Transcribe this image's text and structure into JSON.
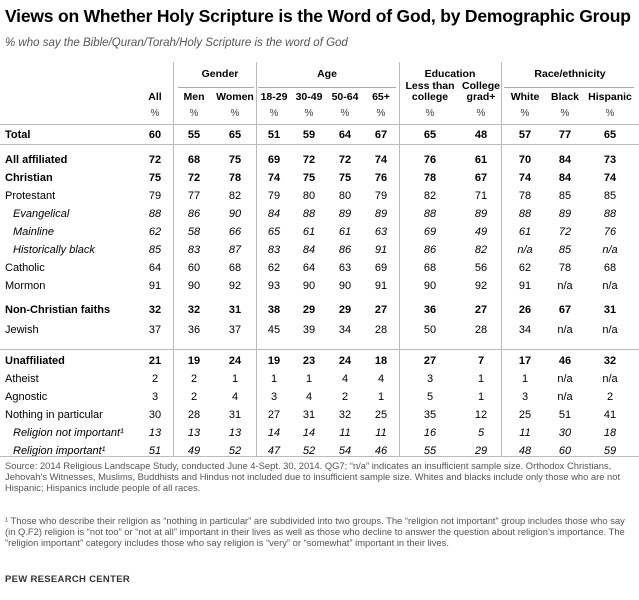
{
  "title": "Views on Whether Holy Scripture is the Word of God, by Demographic Group",
  "subtitle": "% who say the Bible/Quran/Torah/Holy Scripture is the word of God",
  "groups": {
    "gender": "Gender",
    "age": "Age",
    "education": "Education",
    "race": "Race/ethnicity"
  },
  "columns": [
    {
      "label": "All"
    },
    {
      "label": "Men"
    },
    {
      "label": "Women"
    },
    {
      "label": "18-29"
    },
    {
      "label": "30-49"
    },
    {
      "label": "50-64"
    },
    {
      "label": "65+"
    },
    {
      "label": "Less than college"
    },
    {
      "label": "College grad+"
    },
    {
      "label": "White"
    },
    {
      "label": "Black"
    },
    {
      "label": "Hispanic"
    }
  ],
  "pct_symbol": "%",
  "rows": [
    {
      "label": "Total",
      "style": "bold",
      "values": [
        "60",
        "55",
        "65",
        "51",
        "59",
        "64",
        "67",
        "65",
        "48",
        "57",
        "77",
        "65"
      ]
    },
    {
      "label": "All affiliated",
      "style": "bold",
      "values": [
        "72",
        "68",
        "75",
        "69",
        "72",
        "72",
        "74",
        "76",
        "61",
        "70",
        "84",
        "73"
      ]
    },
    {
      "label": "Christian",
      "style": "bold",
      "values": [
        "75",
        "72",
        "78",
        "74",
        "75",
        "75",
        "76",
        "78",
        "67",
        "74",
        "84",
        "74"
      ]
    },
    {
      "label": "Protestant",
      "style": "",
      "values": [
        "79",
        "77",
        "82",
        "79",
        "80",
        "80",
        "79",
        "82",
        "71",
        "78",
        "85",
        "85"
      ]
    },
    {
      "label": "Evangelical",
      "style": "ital",
      "values": [
        "88",
        "86",
        "90",
        "84",
        "88",
        "89",
        "89",
        "88",
        "89",
        "88",
        "89",
        "88"
      ]
    },
    {
      "label": "Mainline",
      "style": "ital",
      "values": [
        "62",
        "58",
        "66",
        "65",
        "61",
        "61",
        "63",
        "69",
        "49",
        "61",
        "72",
        "76"
      ]
    },
    {
      "label": "Historically black",
      "style": "ital",
      "values": [
        "85",
        "83",
        "87",
        "83",
        "84",
        "86",
        "91",
        "86",
        "82",
        "n/a",
        "85",
        "n/a"
      ]
    },
    {
      "label": "Catholic",
      "style": "",
      "values": [
        "64",
        "60",
        "68",
        "62",
        "64",
        "63",
        "69",
        "68",
        "56",
        "62",
        "78",
        "68"
      ]
    },
    {
      "label": "Mormon",
      "style": "",
      "values": [
        "91",
        "90",
        "92",
        "93",
        "90",
        "90",
        "91",
        "90",
        "92",
        "91",
        "n/a",
        "n/a"
      ]
    },
    {
      "label": "Non-Christian faiths",
      "style": "bold",
      "values": [
        "32",
        "32",
        "31",
        "38",
        "29",
        "29",
        "27",
        "36",
        "27",
        "26",
        "67",
        "31"
      ]
    },
    {
      "label": "Jewish",
      "style": "",
      "values": [
        "37",
        "36",
        "37",
        "45",
        "39",
        "34",
        "28",
        "50",
        "28",
        "34",
        "n/a",
        "n/a"
      ]
    },
    {
      "label": "Unaffiliated",
      "style": "bold",
      "values": [
        "21",
        "19",
        "24",
        "19",
        "23",
        "24",
        "18",
        "27",
        "7",
        "17",
        "46",
        "32"
      ]
    },
    {
      "label": "Atheist",
      "style": "",
      "values": [
        "2",
        "2",
        "1",
        "1",
        "1",
        "4",
        "4",
        "3",
        "1",
        "1",
        "n/a",
        "n/a"
      ]
    },
    {
      "label": "Agnostic",
      "style": "",
      "values": [
        "3",
        "2",
        "4",
        "3",
        "4",
        "2",
        "1",
        "5",
        "1",
        "3",
        "n/a",
        "2"
      ]
    },
    {
      "label": "Nothing in particular",
      "style": "",
      "values": [
        "30",
        "28",
        "31",
        "27",
        "31",
        "32",
        "25",
        "35",
        "12",
        "25",
        "51",
        "41"
      ]
    },
    {
      "label": "Religion not important¹",
      "style": "ital",
      "values": [
        "13",
        "13",
        "13",
        "14",
        "14",
        "11",
        "11",
        "16",
        "5",
        "11",
        "30",
        "18"
      ]
    },
    {
      "label": "Religion important¹",
      "style": "ital",
      "values": [
        "51",
        "49",
        "52",
        "47",
        "52",
        "54",
        "46",
        "55",
        "29",
        "48",
        "60",
        "59"
      ]
    }
  ],
  "source_note": "Source: 2014 Religious Landscape Study, conducted June 4-Sept. 30, 2014. QG7; “n/a” indicates an insufficient sample size. Orthodox Christians, Jehovah’s Witnesses, Muslims, Buddhists and Hindus not included due to insufficient sample size. Whites and blacks include only those who are not Hispanic; Hispanics include people of all races.",
  "footnote": "¹ Those who describe their religion as “nothing in particular” are subdivided into two groups. The “religion not important” group includes those who say (in Q.F2) religion is “not too” or “not at all” important in their lives as well as those who decline to answer the question about religion’s importance. The “religion important” category includes those who say religion is “very” or “somewhat” important in their lives.",
  "brand": "PEW RESEARCH CENTER"
}
